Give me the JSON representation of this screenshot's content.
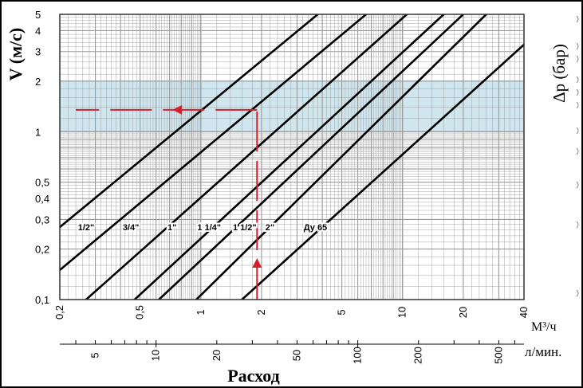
{
  "chart_data": {
    "type": "line",
    "scale": "log-log",
    "y_label": "V (м/с)",
    "right_label": "Δp (бар)",
    "x_title": "Расход",
    "x_unit_m3h": "М³/ч",
    "x_unit_lmin": "л/мин.",
    "xlim_m3h": [
      0.2,
      40
    ],
    "ylim": [
      0.1,
      5
    ],
    "y_ticks": [
      {
        "v": 0.1,
        "label": "0,1"
      },
      {
        "v": 0.2,
        "label": "0,2"
      },
      {
        "v": 0.3,
        "label": "0,3"
      },
      {
        "v": 0.4,
        "label": "0,4"
      },
      {
        "v": 0.5,
        "label": "0,5"
      },
      {
        "v": 1,
        "label": "1"
      },
      {
        "v": 2,
        "label": "2"
      },
      {
        "v": 3,
        "label": "3"
      },
      {
        "v": 4,
        "label": "4"
      },
      {
        "v": 5,
        "label": "5"
      }
    ],
    "x_ticks_m3h": [
      {
        "v": 0.2,
        "label": "0,2"
      },
      {
        "v": 0.5,
        "label": "0,5"
      },
      {
        "v": 1,
        "label": "1"
      },
      {
        "v": 2,
        "label": "2"
      },
      {
        "v": 5,
        "label": "5"
      },
      {
        "v": 10,
        "label": "10"
      },
      {
        "v": 20,
        "label": "20"
      },
      {
        "v": 40,
        "label": "40"
      }
    ],
    "x_ticks_lmin": [
      {
        "v": 5,
        "label": "5"
      },
      {
        "v": 10,
        "label": "10"
      },
      {
        "v": 20,
        "label": "20"
      },
      {
        "v": 50,
        "label": "50"
      },
      {
        "v": 100,
        "label": "100"
      },
      {
        "v": 200,
        "label": "200"
      },
      {
        "v": 500,
        "label": "500"
      }
    ],
    "band": {
      "y_min": 1,
      "y_max": 2,
      "color": "#cfe6ef"
    },
    "series": [
      {
        "name": "1/2\"",
        "points": [
          [
            0.2,
            0.27
          ],
          [
            3.8,
            5
          ]
        ],
        "label_at": [
          0.27,
          0.27
        ]
      },
      {
        "name": "3/4\"",
        "points": [
          [
            0.2,
            0.15
          ],
          [
            6.6,
            5
          ]
        ],
        "label_at": [
          0.45,
          0.27
        ]
      },
      {
        "name": "1\"",
        "points": [
          [
            0.27,
            0.1
          ],
          [
            10.5,
            5
          ]
        ],
        "label_at": [
          0.72,
          0.27
        ]
      },
      {
        "name": "1 1/4\"",
        "points": [
          [
            0.47,
            0.1
          ],
          [
            16,
            5
          ]
        ],
        "label_at": [
          1.1,
          0.27
        ]
      },
      {
        "name": "1 1/2\"",
        "points": [
          [
            0.62,
            0.1
          ],
          [
            20,
            5
          ]
        ],
        "label_at": [
          1.65,
          0.27
        ]
      },
      {
        "name": "2\"",
        "points": [
          [
            0.95,
            0.1
          ],
          [
            26,
            5
          ]
        ],
        "label_at": [
          2.2,
          0.27
        ]
      },
      {
        "name": "Ду 65",
        "points": [
          [
            1.6,
            0.1
          ],
          [
            40,
            3.3
          ]
        ],
        "label_at": [
          3.7,
          0.27
        ]
      }
    ],
    "example": {
      "flow_m3h": 1.9,
      "velocity": 1.35,
      "color": "#d81e2b"
    },
    "colors": {
      "grid": "#9a9a9a",
      "series": "#000000",
      "accent": "#d81e2b"
    }
  }
}
